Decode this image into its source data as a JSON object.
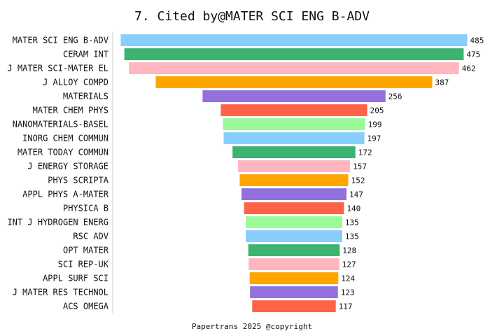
{
  "chart_data": {
    "type": "bar",
    "orientation": "horizontal",
    "title": "7. Cited by@MATER SCI ENG B-ADV",
    "footer": "Papertrans 2025 @copyright",
    "categories": [
      "MATER SCI ENG B-ADV",
      "CERAM INT",
      "J MATER SCI-MATER EL",
      "J ALLOY COMPD",
      "MATERIALS",
      "MATER CHEM PHYS",
      "NANOMATERIALS-BASEL",
      "INORG CHEM COMMUN",
      "MATER TODAY COMMUN",
      "J ENERGY STORAGE",
      "PHYS SCRIPTA",
      "APPL PHYS A-MATER",
      "PHYSICA B",
      "INT J HYDROGEN ENERG",
      "RSC ADV",
      "OPT MATER",
      "SCI REP-UK",
      "APPL SURF SCI",
      "J MATER RES TECHNOL",
      "ACS OMEGA"
    ],
    "values": [
      485,
      475,
      462,
      387,
      256,
      205,
      199,
      197,
      172,
      157,
      152,
      147,
      140,
      135,
      135,
      128,
      127,
      124,
      123,
      117
    ],
    "colors": [
      "#87CEFA",
      "#3CB371",
      "#FFB6C1",
      "#FFA500",
      "#9370DB",
      "#FF6347",
      "#98FB98"
    ],
    "xlim": [
      0,
      485
    ],
    "layout": "centered-funnel"
  }
}
